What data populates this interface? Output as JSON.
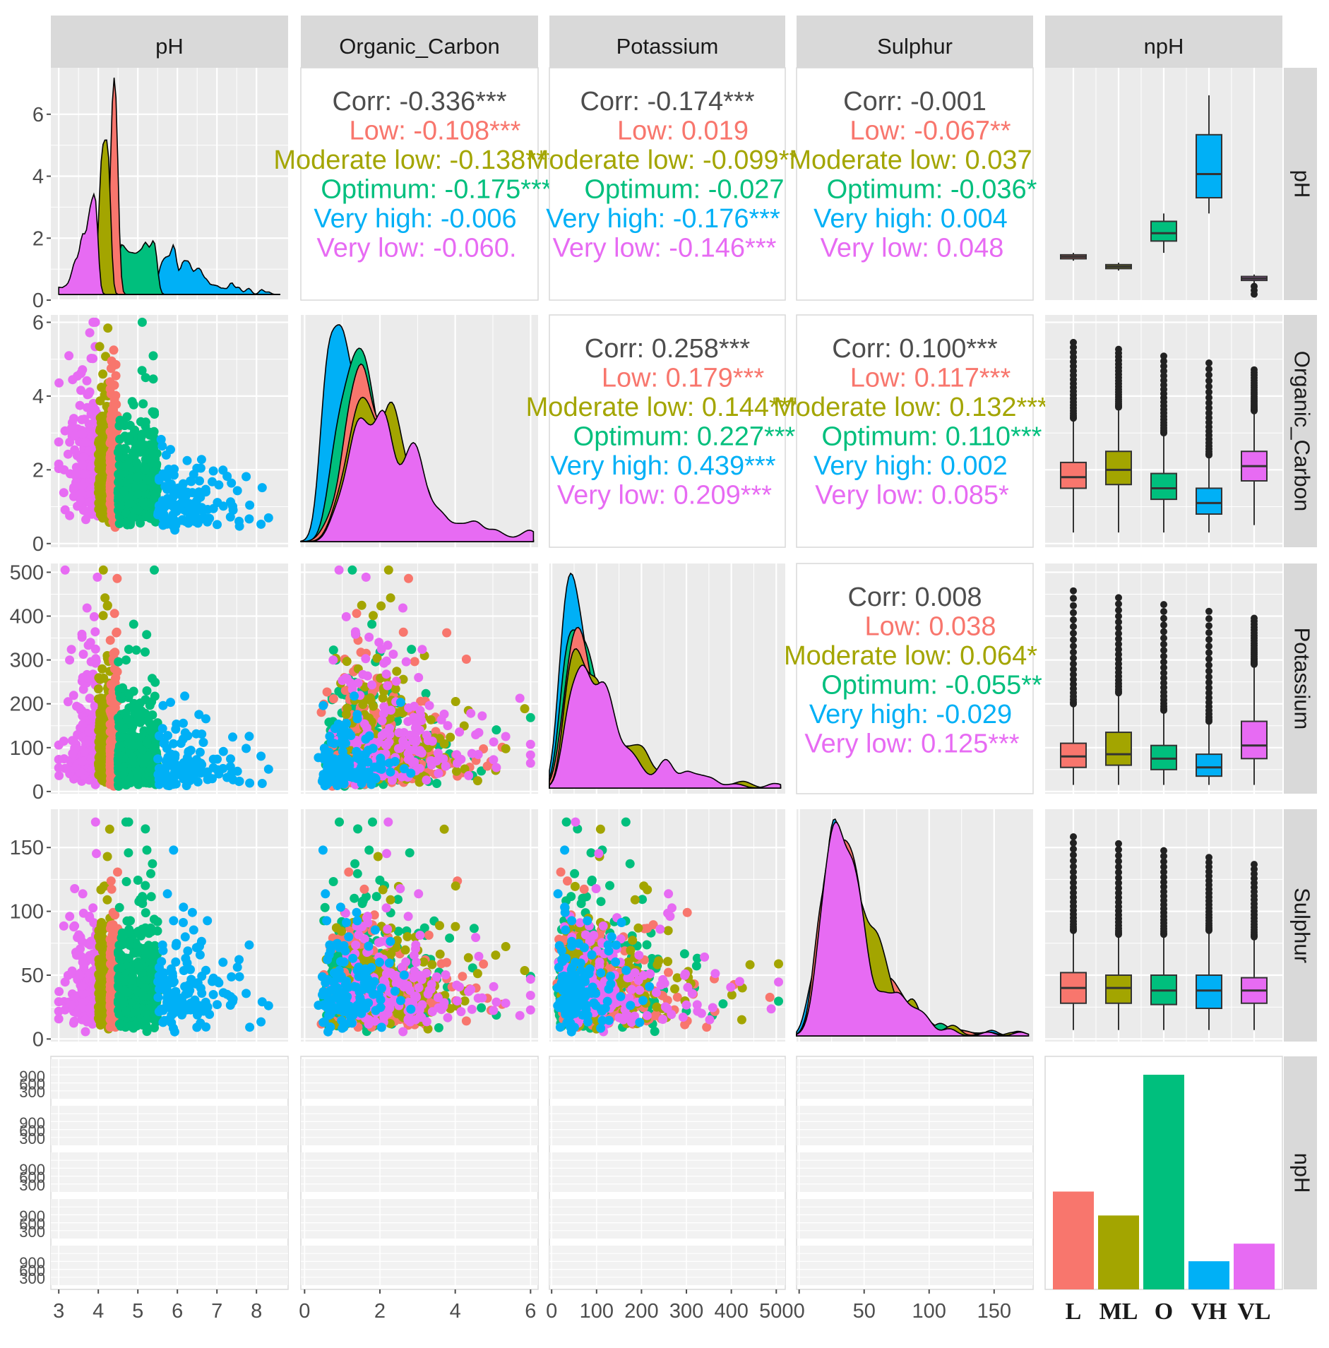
{
  "chart_data": {
    "type": "pairs",
    "variables": [
      "pH",
      "Organic_Carbon",
      "Potassium",
      "Sulphur",
      "npH"
    ],
    "groups": [
      "Low",
      "Moderate low",
      "Optimum",
      "Very high",
      "Very low"
    ],
    "group_codes": [
      "L",
      "ML",
      "O",
      "VH",
      "VL"
    ],
    "colors": {
      "Low": "#F8766D",
      "Moderate low": "#A3A500",
      "Optimum": "#00BF7D",
      "Very high": "#00B0F6",
      "Very low": "#E76BF3",
      "overall": "#4d4d4d"
    },
    "axes": {
      "pH": {
        "range": [
          2.8,
          8.8
        ],
        "ticks": [
          "3",
          "4",
          "5",
          "6",
          "7",
          "8"
        ],
        "tick_values": [
          3,
          4,
          5,
          6,
          7,
          8
        ]
      },
      "Organic_Carbon": {
        "range": [
          -0.1,
          6.2
        ],
        "ticks": [
          "0",
          "2",
          "4",
          "6"
        ],
        "tick_values": [
          0,
          2,
          4,
          6
        ]
      },
      "Potassium": {
        "range": [
          -5,
          520
        ],
        "ticks": [
          "0",
          "100",
          "200",
          "300",
          "400",
          "500"
        ],
        "tick_values": [
          0,
          100,
          200,
          300,
          400,
          500
        ]
      },
      "Sulphur": {
        "range": [
          -2,
          180
        ],
        "ticks": [
          "0",
          "50",
          "100",
          "150"
        ],
        "tick_values": [
          0,
          50,
          100,
          150
        ]
      },
      "pH_density": {
        "range": [
          0,
          7.5
        ],
        "ticks": [
          "0",
          "2",
          "4",
          "6"
        ],
        "tick_values": [
          0,
          2,
          4,
          6
        ]
      }
    },
    "facet_count_ticks": [
      "300",
      "600",
      "900"
    ],
    "correlations": [
      {
        "row": "pH",
        "col": "Organic_Carbon",
        "values": [
          "Corr: -0.336***",
          "Low: -0.108***",
          "Moderate low: -0.138***",
          "Optimum: -0.175***",
          "Very high: -0.006",
          "Very low: -0.060."
        ]
      },
      {
        "row": "pH",
        "col": "Potassium",
        "values": [
          "Corr: -0.174***",
          "Low: 0.019",
          "Moderate low: -0.099**",
          "Optimum: -0.027",
          "Very high: -0.176***",
          "Very low: -0.146***"
        ]
      },
      {
        "row": "pH",
        "col": "Sulphur",
        "values": [
          "Corr: -0.001",
          "Low: -0.067**",
          "Moderate low: 0.037",
          "Optimum: -0.036*",
          "Very high: 0.004",
          "Very low: 0.048"
        ]
      },
      {
        "row": "Organic_Carbon",
        "col": "Potassium",
        "values": [
          "Corr: 0.258***",
          "Low: 0.179***",
          "Moderate low: 0.144***",
          "Optimum: 0.227***",
          "Very high: 0.439***",
          "Very low: 0.209***"
        ]
      },
      {
        "row": "Organic_Carbon",
        "col": "Sulphur",
        "values": [
          "Corr: 0.100***",
          "Low: 0.117***",
          "Moderate low: 0.132***",
          "Optimum: 0.110***",
          "Very high: 0.002",
          "Very low: 0.085*"
        ]
      },
      {
        "row": "Potassium",
        "col": "Sulphur",
        "values": [
          "Corr: 0.008",
          "Low: 0.038",
          "Moderate low: 0.064*",
          "Optimum: -0.055**",
          "Very high: -0.029",
          "Very low: 0.125***"
        ]
      }
    ],
    "ph_ranges_by_group": {
      "Low": [
        4.3,
        4.5
      ],
      "Moderate low": [
        4.0,
        4.3
      ],
      "Optimum": [
        4.5,
        5.5
      ],
      "Very high": [
        5.5,
        8.6
      ],
      "Very low": [
        3.0,
        4.0
      ]
    },
    "boxplots": {
      "pH": {
        "Low": {
          "min": 4.3,
          "q1": 4.35,
          "median": 4.4,
          "q3": 4.45,
          "max": 4.5
        },
        "Moderate low": {
          "min": 4.05,
          "q1": 4.1,
          "median": 4.15,
          "q3": 4.2,
          "max": 4.25
        },
        "Optimum": {
          "min": 4.5,
          "q1": 4.8,
          "median": 5.0,
          "q3": 5.3,
          "max": 5.5
        },
        "Very high": {
          "min": 5.5,
          "q1": 5.9,
          "median": 6.5,
          "q3": 7.5,
          "max": 8.5
        },
        "Very low": {
          "min": 3.7,
          "q1": 3.8,
          "median": 3.85,
          "q3": 3.9,
          "max": 3.95
        }
      },
      "Organic_Carbon": {
        "Low": {
          "min": 0.3,
          "q1": 1.5,
          "median": 1.8,
          "q3": 2.2,
          "max": 3.4
        },
        "Moderate low": {
          "min": 0.3,
          "q1": 1.6,
          "median": 2.0,
          "q3": 2.5,
          "max": 3.7
        },
        "Optimum": {
          "min": 0.3,
          "q1": 1.2,
          "median": 1.5,
          "q3": 1.9,
          "max": 3.0
        },
        "Very high": {
          "min": 0.3,
          "q1": 0.8,
          "median": 1.1,
          "q3": 1.5,
          "max": 2.4
        },
        "Very low": {
          "min": 0.5,
          "q1": 1.7,
          "median": 2.1,
          "q3": 2.5,
          "max": 3.6
        }
      },
      "Potassium": {
        "Low": {
          "min": 15,
          "q1": 55,
          "median": 80,
          "q3": 110,
          "max": 200
        },
        "Moderate low": {
          "min": 15,
          "q1": 60,
          "median": 85,
          "q3": 135,
          "max": 225
        },
        "Optimum": {
          "min": 15,
          "q1": 50,
          "median": 75,
          "q3": 105,
          "max": 185
        },
        "Very high": {
          "min": 15,
          "q1": 35,
          "median": 55,
          "q3": 85,
          "max": 160
        },
        "Very low": {
          "min": 15,
          "q1": 75,
          "median": 105,
          "q3": 160,
          "max": 290
        }
      },
      "Sulphur": {
        "Low": {
          "min": 7,
          "q1": 28,
          "median": 40,
          "q3": 52,
          "max": 85
        },
        "Moderate low": {
          "min": 7,
          "q1": 28,
          "median": 40,
          "q3": 50,
          "max": 82
        },
        "Optimum": {
          "min": 7,
          "q1": 27,
          "median": 38,
          "q3": 50,
          "max": 82
        },
        "Very high": {
          "min": 7,
          "q1": 24,
          "median": 38,
          "q3": 50,
          "max": 85
        },
        "Very low": {
          "min": 7,
          "q1": 28,
          "median": 38,
          "q3": 48,
          "max": 80
        }
      }
    },
    "group_counts": {
      "Low": 1390,
      "Moderate low": 1050,
      "Optimum": 3050,
      "Very high": 400,
      "Very low": 650
    }
  }
}
